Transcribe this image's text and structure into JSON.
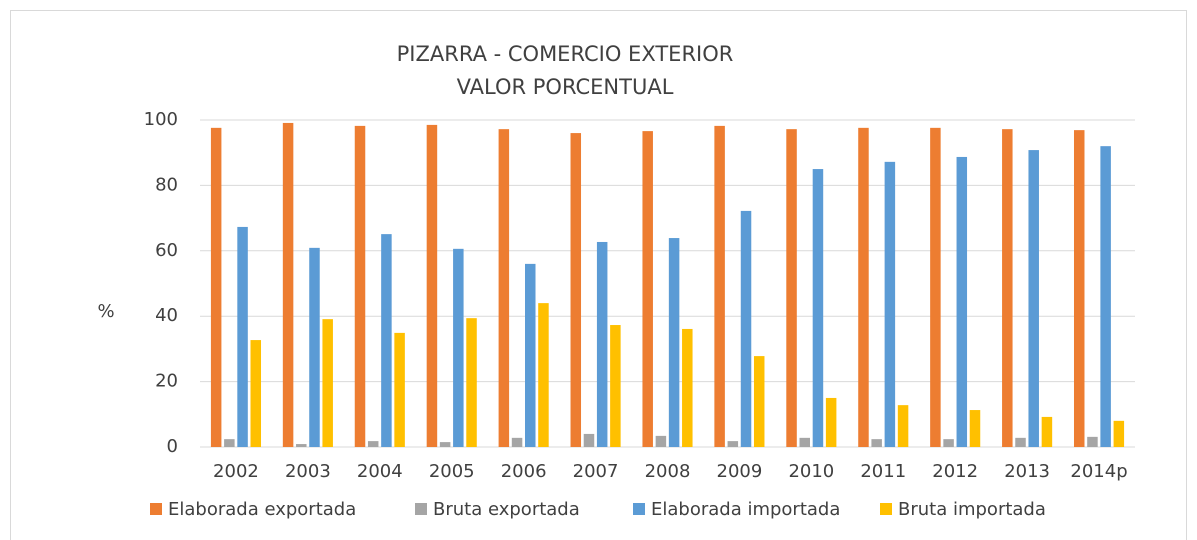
{
  "chart_data": {
    "type": "bar",
    "title": "PIZARRA - COMERCIO EXTERIOR",
    "subtitle": "VALOR PORCENTUAL",
    "y_label": "%",
    "categories": [
      "2002",
      "2003",
      "2004",
      "2005",
      "2006",
      "2007",
      "2008",
      "2009",
      "2010",
      "2011",
      "2012",
      "2013",
      "2014p"
    ],
    "series": [
      {
        "name": "Elaborada exportada",
        "color": "#ED7D31",
        "values": [
          97.6,
          99.1,
          98.2,
          98.5,
          97.2,
          96.0,
          96.6,
          98.2,
          97.2,
          97.6,
          97.6,
          97.2,
          96.9
        ]
      },
      {
        "name": "Bruta exportada",
        "color": "#A5A5A5",
        "values": [
          2.4,
          0.9,
          1.8,
          1.5,
          2.8,
          4.0,
          3.4,
          1.8,
          2.8,
          2.4,
          2.4,
          2.8,
          3.1
        ]
      },
      {
        "name": "Elaborada importada",
        "color": "#5B9BD5",
        "values": [
          67.3,
          60.9,
          65.1,
          60.6,
          56.0,
          62.7,
          63.9,
          72.2,
          85.0,
          87.2,
          88.7,
          90.8,
          92.0
        ]
      },
      {
        "name": "Bruta importada",
        "color": "#FFC000",
        "values": [
          32.7,
          39.1,
          34.9,
          39.4,
          44.0,
          37.3,
          36.1,
          27.8,
          15.0,
          12.8,
          11.3,
          9.2,
          8.0
        ]
      }
    ],
    "ylim": [
      0,
      100
    ],
    "yticks": [
      0,
      20,
      40,
      60,
      80,
      100
    ],
    "grid": true,
    "legend": "bottom"
  }
}
